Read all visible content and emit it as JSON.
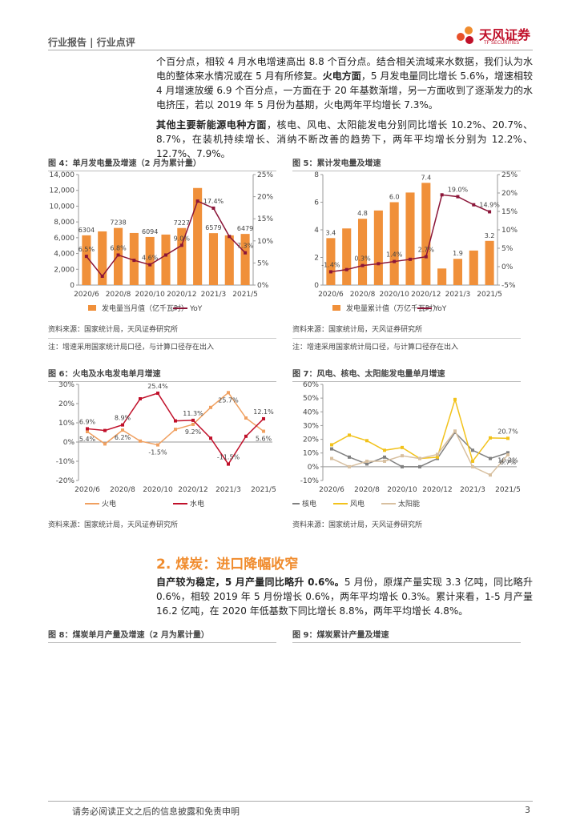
{
  "header": {
    "title": "行业报告 | 行业点评",
    "logo": "天风证券",
    "logo_en": "TF SECURITIES"
  },
  "body": {
    "paragraphs": [
      {
        "runs": [
          {
            "text": "个百分点，相较 4 月水电增速高出 8.8 个百分点。结合相关流域来水数据，我们认为水电的整体来水情况或在 5 月有所修复。",
            "bold": false
          },
          {
            "text": "火电方面",
            "bold": true
          },
          {
            "text": "，5 月发电量同比增长 5.6%，增速相较 4 月增速放缓 6.9 个百分点，一方面在于 20 年基数渐增，另一方面收到了逐渐发力的水电挤压，若以 2019 年 5 月份为基期，火电两年平均增长 7.3%。",
            "bold": false
          }
        ]
      },
      {
        "runs": [
          {
            "text": "其他主要新能源电种方面",
            "bold": true
          },
          {
            "text": "，核电、风电、太阳能发电分别同比增长 10.2%、20.7%、8.7%，在装机持续增长、消纳不断改善的趋势下，两年平均增长分别为 12.2%、12.7%、7.9%。",
            "bold": false
          }
        ]
      }
    ],
    "section_title": "2. 煤炭：进口降幅收窄",
    "paragraphs2": [
      {
        "runs": [
          {
            "text": "自产较为稳定，5 月产量同比略升 0.6%。",
            "bold": true
          },
          {
            "text": "5 月份，原煤产量实现 3.3 亿吨，同比略升 0.6%，相较 2019 年 5 月份增长 0.6%，两年平均增长 0.3%。累计来看，1-5 月产量 16.2 亿吨，在 2020 年低基数下同比增长 8.8%，两年平均增长 4.8%。",
            "bold": false
          }
        ]
      }
    ],
    "figure_captions": [
      "图 8：煤炭单月产量及增速（2 月为累计量）",
      "图 9：煤炭累计产量及增速"
    ]
  },
  "footer": {
    "disclaimer": "请务必阅读正文之后的信息披露和免责申明",
    "page": "3"
  },
  "chart_data": [
    {
      "type": "combo",
      "title": "图 4：单月发电量及增速（2 月为累计量）",
      "source": "资料来源：国家统计局，天风证券研究所",
      "note": "注：增速采用国家统计局口径，与计算口径存在出入",
      "categories": [
        "2020/6",
        null,
        "2020/8",
        null,
        "2020/10",
        null,
        "2020/12",
        null,
        "2021/3",
        null,
        "2021/5"
      ],
      "ylim": [
        0,
        14000
      ],
      "yticks": [
        0,
        {
          "value": 2000,
          "label": "2,000"
        },
        {
          "value": 4000,
          "label": "4,000"
        },
        {
          "value": 6000,
          "label": "6,000"
        },
        {
          "value": 8000,
          "label": "8,000"
        },
        {
          "value": 10000,
          "label": "10,000"
        },
        {
          "value": 12000,
          "label": "12,000"
        },
        {
          "value": 14000,
          "label": "14,000"
        }
      ],
      "y2lim": [
        0,
        25
      ],
      "y2ticks": [
        {
          "value": 0,
          "label": "0%"
        },
        {
          "value": 5,
          "label": "5%"
        },
        {
          "value": 10,
          "label": "10%"
        },
        {
          "value": 15,
          "label": "15%"
        },
        {
          "value": 20,
          "label": "20%"
        },
        {
          "value": 25,
          "label": "25%"
        }
      ],
      "series": [
        {
          "name": "发电量当月值（亿千瓦时）",
          "type": "bar",
          "color": "#f0903a",
          "values": [
            6304,
            6800,
            7238,
            6600,
            6094,
            6400,
            7227,
            12300,
            6579,
            6300,
            6479
          ],
          "value_labels": [
            "6304",
            null,
            "7238",
            null,
            "6094",
            null,
            "7227",
            null,
            "6579",
            null,
            "6479"
          ]
        },
        {
          "name": "YoY",
          "type": "line",
          "axis": "y2",
          "color": "#8b1538",
          "values": [
            6.5,
            2.0,
            6.8,
            5.6,
            4.6,
            6.8,
            9.0,
            19.0,
            17.4,
            11.0,
            7.3
          ],
          "value_labels": [
            "6.5%",
            null,
            "6.8%",
            null,
            "4.6%",
            null,
            "9.0%",
            null,
            "17.4%",
            null,
            "7.3%"
          ]
        }
      ]
    },
    {
      "type": "combo",
      "title": "图 5：累计发电量及增速",
      "source": "资料来源：国家统计局，天风证券研究所",
      "note": "注：增速采用国家统计局口径，与计算口径存在出入",
      "categories": [
        "2020/6",
        null,
        "2020/8",
        null,
        "2020/10",
        null,
        "2020/12",
        null,
        "2021/3",
        null,
        "2021/5"
      ],
      "ylim": [
        0,
        8
      ],
      "yticks": [
        0,
        2,
        4,
        6,
        8
      ],
      "y2lim": [
        -5,
        25
      ],
      "y2ticks": [
        {
          "value": -5,
          "label": "-5%"
        },
        {
          "value": 0,
          "label": "0%"
        },
        {
          "value": 5,
          "label": "5%"
        },
        {
          "value": 10,
          "label": "10%"
        },
        {
          "value": 15,
          "label": "15%"
        },
        {
          "value": 20,
          "label": "20%"
        },
        {
          "value": 25,
          "label": "25%"
        }
      ],
      "series": [
        {
          "name": "发电量累计值（万亿千瓦时）",
          "type": "bar",
          "color": "#f0903a",
          "values": [
            3.4,
            4.1,
            4.8,
            5.4,
            6.0,
            6.7,
            7.4,
            1.2,
            1.9,
            2.5,
            3.2
          ],
          "value_labels": [
            "3.4",
            null,
            "4.8",
            null,
            "6.0",
            null,
            "7.4",
            null,
            "1.9",
            null,
            "3.2"
          ]
        },
        {
          "name": "YoY",
          "type": "line",
          "axis": "y2",
          "color": "#8b1538",
          "values": [
            -1.4,
            -0.8,
            0.3,
            0.8,
            1.4,
            2.0,
            2.7,
            19.5,
            19.0,
            16.8,
            14.9
          ],
          "value_labels": [
            "-1.4%",
            null,
            "0.3%",
            null,
            "1.4%",
            null,
            "2.7%",
            null,
            "19.0%",
            null,
            "14.9%"
          ]
        }
      ]
    },
    {
      "type": "line",
      "title": "图 6：火电及水电发电单月增速",
      "source": "资料来源：国家统计局，天风证券研究所",
      "categories": [
        "2020/6",
        null,
        "2020/8",
        null,
        "2020/10",
        null,
        "2020/12",
        null,
        "2021/3",
        null,
        "2021/5"
      ],
      "ylim": [
        -20,
        30
      ],
      "yticks": [
        {
          "value": -20,
          "label": "-20%"
        },
        {
          "value": -10,
          "label": "-10%"
        },
        {
          "value": 0,
          "label": "0%"
        },
        {
          "value": 10,
          "label": "10%"
        },
        {
          "value": 20,
          "label": "20%"
        },
        {
          "value": 30,
          "label": "30%"
        }
      ],
      "series": [
        {
          "name": "火电",
          "color": "#f0a060",
          "values": [
            5.4,
            -1.0,
            6.2,
            0.5,
            -1.5,
            6.6,
            9.2,
            18.0,
            25.7,
            12.5,
            5.6
          ],
          "value_labels": [
            "5.4%",
            null,
            "6.2%",
            null,
            "-1.5%",
            null,
            "9.2%",
            null,
            "25.7%",
            null,
            "5.6%"
          ]
        },
        {
          "name": "水电",
          "color": "#c0102a",
          "values": [
            6.9,
            6.0,
            8.9,
            22.5,
            25.4,
            11.0,
            11.3,
            2.0,
            -11.5,
            3.0,
            12.1
          ],
          "value_labels": [
            "6.9%",
            null,
            "8.9%",
            null,
            "25.4%",
            null,
            "11.3%",
            null,
            "-11.5%",
            null,
            "12.1%"
          ]
        }
      ]
    },
    {
      "type": "line",
      "title": "图 7：风电、核电、太阳能发电量单月增速",
      "source": "资料来源：国家统计局，天风证券研究所",
      "categories": [
        "2020/6",
        null,
        "2020/8",
        null,
        "2020/10",
        null,
        "2020/12",
        null,
        "2021/3",
        null,
        "2021/5"
      ],
      "ylim": [
        -10,
        60
      ],
      "yticks": [
        {
          "value": -10,
          "label": "-10%"
        },
        {
          "value": 0,
          "label": "0%"
        },
        {
          "value": 10,
          "label": "10%"
        },
        {
          "value": 20,
          "label": "20%"
        },
        {
          "value": 30,
          "label": "30%"
        },
        {
          "value": 40,
          "label": "40%"
        },
        {
          "value": 50,
          "label": "50%"
        },
        {
          "value": 60,
          "label": "60%"
        }
      ],
      "series": [
        {
          "name": "核电",
          "color": "#808080",
          "values": [
            13,
            7,
            2,
            7,
            0,
            0,
            6,
            25,
            12,
            6,
            10.2
          ],
          "value_labels": [
            null,
            null,
            null,
            null,
            null,
            null,
            null,
            null,
            null,
            null,
            "10.2%"
          ]
        },
        {
          "name": "风电",
          "color": "#f2c21b",
          "values": [
            16,
            23,
            19,
            12,
            14,
            6,
            7,
            49,
            4,
            21,
            20.7
          ],
          "value_labels": [
            null,
            null,
            null,
            null,
            null,
            null,
            null,
            null,
            null,
            null,
            "20.7%"
          ]
        },
        {
          "name": "太阳能",
          "color": "#d8c0a0",
          "values": [
            6,
            0,
            4,
            4,
            8,
            6,
            9,
            26,
            0,
            -6,
            8.7
          ],
          "value_labels": [
            null,
            null,
            null,
            null,
            null,
            null,
            null,
            null,
            null,
            null,
            "8.7%"
          ]
        }
      ]
    }
  ]
}
